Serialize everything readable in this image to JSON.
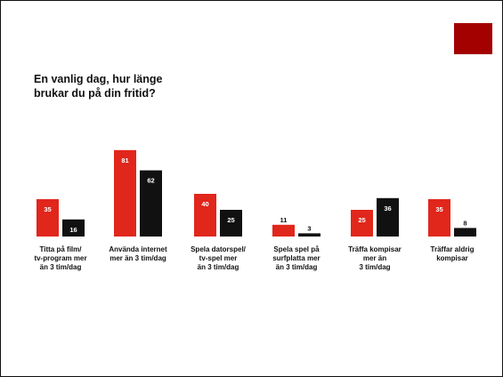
{
  "chart_data": {
    "type": "bar",
    "title": "En vanlig dag, hur länge\nbrukar du på din fritid?",
    "categories": [
      [
        "Titta på film/",
        "tv-program mer",
        "än 3 tim/dag"
      ],
      [
        "Använda internet",
        "mer än 3 tim/dag"
      ],
      [
        "Spela datorspel/",
        "tv-spel mer",
        "än 3 tim/dag"
      ],
      [
        "Spela spel på",
        "surfplatta mer",
        "än 3 tim/dag"
      ],
      [
        "Träffa kompisar",
        "mer än",
        "3 tim/dag"
      ],
      [
        "Träffar aldrig",
        "kompisar"
      ]
    ],
    "series": [
      {
        "color": "#e1261c",
        "values": [
          35,
          81,
          40,
          11,
          25,
          35
        ]
      },
      {
        "color": "#111111",
        "values": [
          16,
          62,
          25,
          3,
          36,
          8
        ]
      }
    ],
    "ylim": [
      0,
      100
    ],
    "grid": false,
    "legend": "none",
    "data_labels": true
  },
  "decor": {
    "corner_box_color": "#a30000"
  }
}
